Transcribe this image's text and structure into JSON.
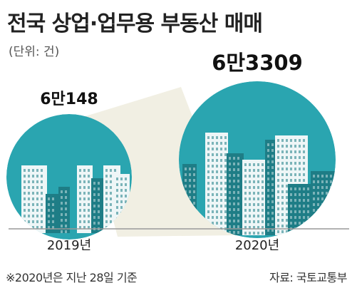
{
  "header": {
    "title": "전국 상업·업무용 부동산 매매",
    "unit": "(단위: 건)"
  },
  "chart_data": {
    "type": "bubble",
    "title": "전국 상업·업무용 부동산 매매",
    "unit": "(단위: 건)",
    "categories": [
      "2019년",
      "2020년"
    ],
    "values": [
      60148,
      63309
    ],
    "value_labels": [
      "6만148",
      "6만3309"
    ]
  },
  "footer": {
    "note": "※2020년은 지난 28일 기준",
    "source": "자료: 국토교통부"
  },
  "colors": {
    "circle": "#2aa5b0",
    "cone": "#f1efe3",
    "building_dark": "#1e7d86",
    "building_light": "#eef6f7",
    "baseline": "#999999"
  }
}
